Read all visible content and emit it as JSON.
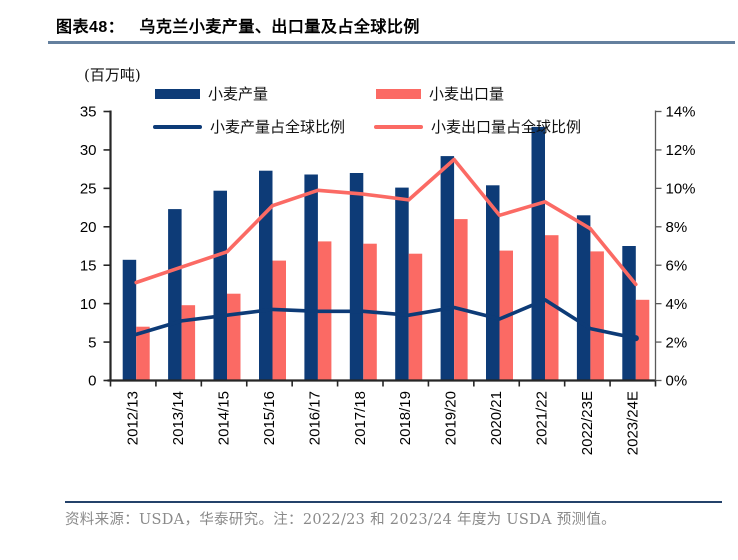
{
  "header": {
    "figure_label": "图表48："
  },
  "chart_data": {
    "type": "combo",
    "title": "乌克兰小麦产量、出口量及占全球比例",
    "unit_label": "(百万吨)",
    "legend_position": "top",
    "grid": false,
    "categories": [
      "2012/13",
      "2013/14",
      "2014/15",
      "2015/16",
      "2016/17",
      "2017/18",
      "2018/19",
      "2019/20",
      "2020/21",
      "2021/22",
      "2022/23E",
      "2023/24E"
    ],
    "series": [
      {
        "name": "小麦产量",
        "type": "bar",
        "axis": "left",
        "color": "#0d3b77",
        "values": [
          15.7,
          22.3,
          24.7,
          27.3,
          26.8,
          27.0,
          25.1,
          29.2,
          25.4,
          33.0,
          21.5,
          17.5
        ]
      },
      {
        "name": "小麦出口量",
        "type": "bar",
        "axis": "left",
        "color": "#fb6a64",
        "values": [
          7.0,
          9.8,
          11.3,
          15.6,
          18.1,
          17.8,
          16.5,
          21.0,
          16.9,
          18.9,
          16.8,
          10.5
        ]
      },
      {
        "name": "小麦产量占全球比例",
        "type": "line",
        "axis": "right",
        "color": "#0d3b77",
        "end_marker": true,
        "values": [
          2.4,
          3.1,
          3.4,
          3.7,
          3.6,
          3.6,
          3.4,
          3.8,
          3.2,
          4.2,
          2.7,
          2.2
        ]
      },
      {
        "name": "小麦出口量占全球比例",
        "type": "line",
        "axis": "right",
        "color": "#fb6a64",
        "end_marker": false,
        "values": [
          5.1,
          5.9,
          6.7,
          9.1,
          9.9,
          9.7,
          9.4,
          11.5,
          8.6,
          9.3,
          7.9,
          5.0
        ]
      }
    ],
    "left_axis": {
      "min": 0,
      "max": 35,
      "step": 5,
      "ticks": [
        "0",
        "5",
        "10",
        "15",
        "20",
        "25",
        "30",
        "35"
      ]
    },
    "right_axis": {
      "min": 0,
      "max": 14,
      "step": 2,
      "suffix": "%",
      "ticks": [
        "0%",
        "2%",
        "4%",
        "6%",
        "8%",
        "10%",
        "12%",
        "14%"
      ]
    }
  },
  "footer": {
    "source_note": "资料来源：USDA，华泰研究。注：2022/23 和 2023/24 年度为 USDA 预测值。"
  },
  "colors": {
    "title_rule": "#64809e",
    "footer_rule": "#24426a",
    "axis": "#262626",
    "right_axis": "#595959",
    "label_text": "#000000",
    "footer_text": "#8a8a8a"
  }
}
